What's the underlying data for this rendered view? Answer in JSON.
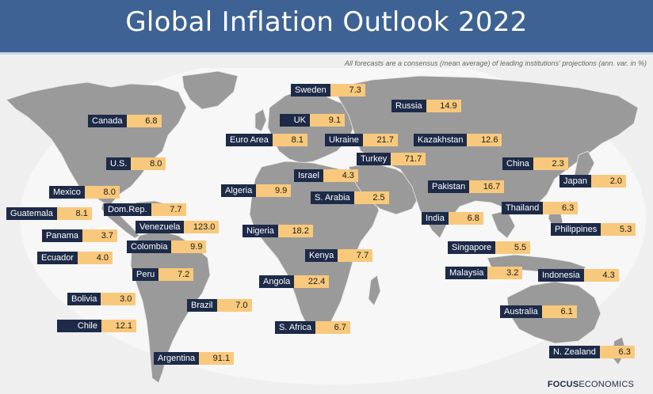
{
  "header": {
    "title": "Global Inflation Outlook 2022"
  },
  "note": "All forecasts are a consensus (mean average) of leading institutions' projections (ann. var. in %)",
  "brand": {
    "bold": "FOCUS",
    "thin": "ECONOMICS"
  },
  "colors": {
    "header": "#3d6293",
    "name_box": "#1d2a48",
    "value_box": "#f8c97c",
    "land": "#9a9a9a",
    "background": "#efefef"
  },
  "countries": [
    {
      "name": "Sweden",
      "value": "7.3"
    },
    {
      "name": "Russia",
      "value": "14.9"
    },
    {
      "name": "Canada",
      "value": "6.8"
    },
    {
      "name": "UK",
      "value": "9.1"
    },
    {
      "name": "Euro Area",
      "value": "8.1"
    },
    {
      "name": "Ukraine",
      "value": "21.7"
    },
    {
      "name": "Kazakhstan",
      "value": "12.6"
    },
    {
      "name": "Turkey",
      "value": "71.7"
    },
    {
      "name": "U.S.",
      "value": "8.0"
    },
    {
      "name": "China",
      "value": "2.3"
    },
    {
      "name": "Israel",
      "value": "4.3"
    },
    {
      "name": "Algeria",
      "value": "9.9"
    },
    {
      "name": "Japan",
      "value": "2.0"
    },
    {
      "name": "Mexico",
      "value": "8.0"
    },
    {
      "name": "S. Arabia",
      "value": "2.5"
    },
    {
      "name": "Pakistan",
      "value": "16.7"
    },
    {
      "name": "Guatemala",
      "value": "8.1"
    },
    {
      "name": "Dom.Rep.",
      "value": "7.7"
    },
    {
      "name": "Thailand",
      "value": "6.3"
    },
    {
      "name": "India",
      "value": "6.8"
    },
    {
      "name": "Venezuela",
      "value": "123.0"
    },
    {
      "name": "Nigeria",
      "value": "18.2"
    },
    {
      "name": "Philippines",
      "value": "5.3"
    },
    {
      "name": "Panama",
      "value": "3.7"
    },
    {
      "name": "Colombia",
      "value": "9.9"
    },
    {
      "name": "Singapore",
      "value": "5.5"
    },
    {
      "name": "Ecuador",
      "value": "4.0"
    },
    {
      "name": "Kenya",
      "value": "7.7"
    },
    {
      "name": "Malaysia",
      "value": "3.2"
    },
    {
      "name": "Indonesia",
      "value": "4.3"
    },
    {
      "name": "Peru",
      "value": "7.2"
    },
    {
      "name": "Angola",
      "value": "22.4"
    },
    {
      "name": "Bolivia",
      "value": "3.0"
    },
    {
      "name": "Brazil",
      "value": "7.0"
    },
    {
      "name": "Australia",
      "value": "6.1"
    },
    {
      "name": "Chile",
      "value": "12.1"
    },
    {
      "name": "S. Africa",
      "value": "6.7"
    },
    {
      "name": "N. Zealand",
      "value": "6.3"
    },
    {
      "name": "Argentina",
      "value": "91.1"
    }
  ]
}
